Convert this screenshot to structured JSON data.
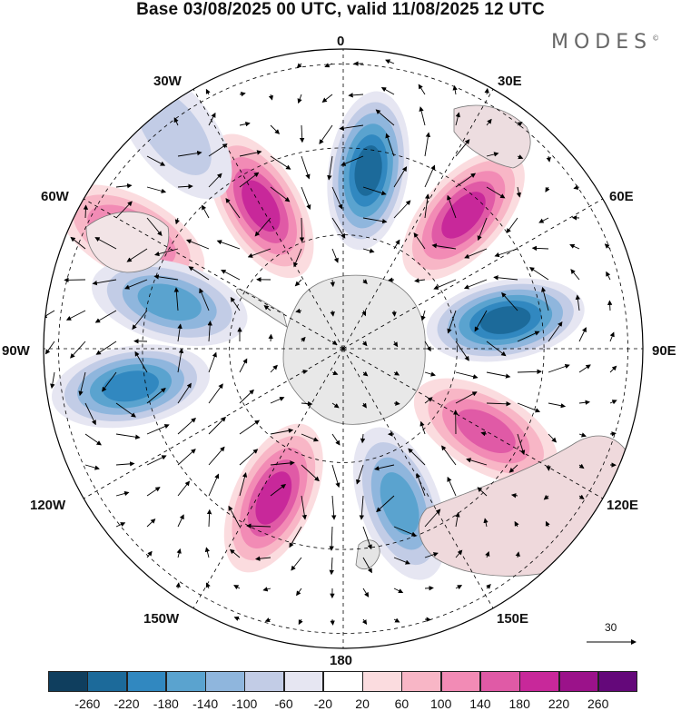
{
  "title": "Base 03/08/2025 00 UTC, valid 11/08/2025 12 UTC",
  "brand": {
    "name": "MODES",
    "mark": "©"
  },
  "longitude_labels": {
    "top": "0",
    "bottom": "180",
    "left": "90W",
    "right": "90E",
    "upper_left_1": "30W",
    "upper_left_2": "60W",
    "upper_right_1": "30E",
    "upper_right_2": "60E",
    "lower_left_1": "120W",
    "lower_left_2": "150W",
    "lower_right_1": "120E",
    "lower_right_2": "150E"
  },
  "vector_reference": {
    "value": "30"
  },
  "colorbar": {
    "colors": [
      "#0f3e5e",
      "#1c6a9a",
      "#3188c0",
      "#5aa3cf",
      "#8fb6dd",
      "#c2cce6",
      "#e6e6f2",
      "#ffffff",
      "#fbdcdf",
      "#f8b6c6",
      "#f28bb5",
      "#e05aa6",
      "#c8289a",
      "#9b128a",
      "#64087a"
    ],
    "ticks": [
      "-260",
      "-220",
      "-180",
      "-140",
      "-100",
      "-60",
      "-20",
      "20",
      "60",
      "100",
      "140",
      "180",
      "220",
      "260"
    ]
  },
  "anomaly_centers": [
    {
      "lon": 8,
      "colat": 0.6,
      "value": -250
    },
    {
      "lon": 42,
      "colat": 0.6,
      "value": 200
    },
    {
      "lon": 80,
      "colat": 0.55,
      "value": -230
    },
    {
      "lon": 120,
      "colat": 0.55,
      "value": 150
    },
    {
      "lon": 160,
      "colat": 0.55,
      "value": -160
    },
    {
      "lon": -155,
      "colat": 0.55,
      "value": 200
    },
    {
      "lon": -100,
      "colat": 0.72,
      "value": -180
    },
    {
      "lon": -62,
      "colat": 0.8,
      "value": 160
    },
    {
      "lon": -30,
      "colat": 0.55,
      "value": 200
    },
    {
      "lon": -38,
      "colat": 0.92,
      "value": -90
    },
    {
      "lon": -75,
      "colat": 0.6,
      "value": -140
    }
  ]
}
